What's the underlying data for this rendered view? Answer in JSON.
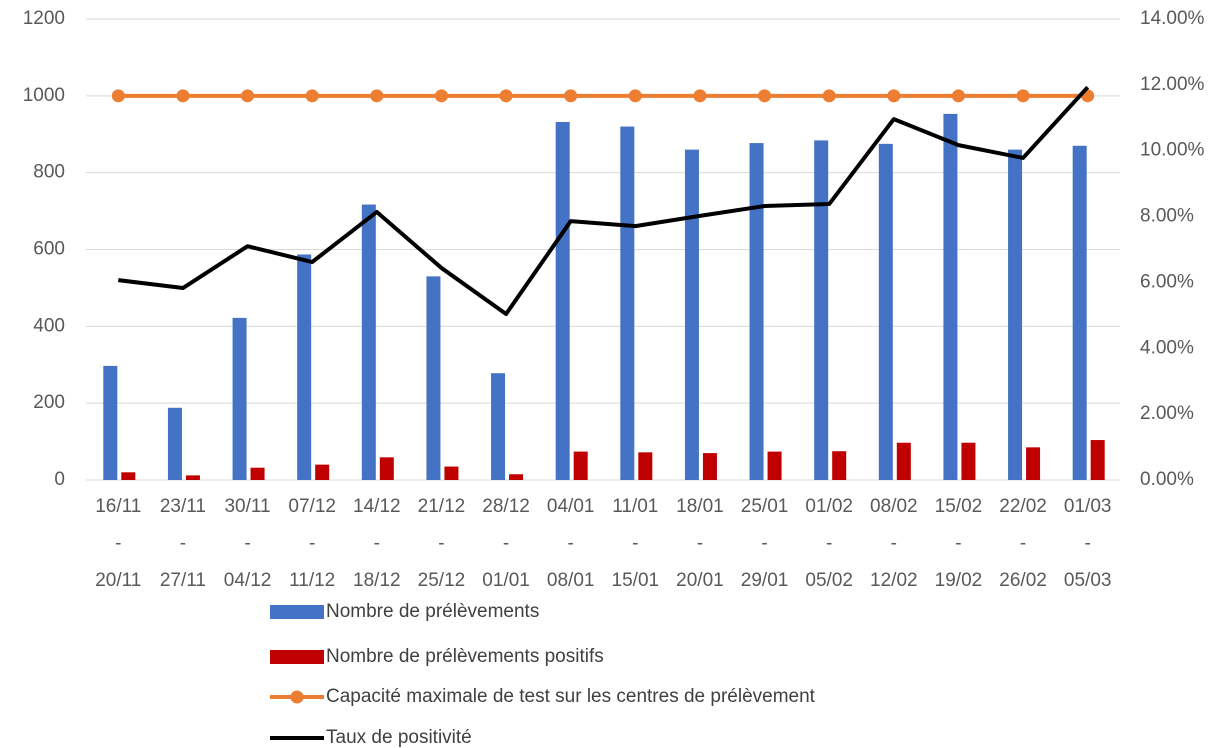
{
  "chart_data": {
    "type": "bar_line",
    "categories": [
      [
        "16/11",
        "-",
        "20/11"
      ],
      [
        "23/11",
        "-",
        "27/11"
      ],
      [
        "30/11",
        "-",
        "04/12"
      ],
      [
        "07/12",
        "-",
        "11/12"
      ],
      [
        "14/12",
        "-",
        "18/12"
      ],
      [
        "21/12",
        "-",
        "25/12"
      ],
      [
        "28/12",
        "-",
        "01/01"
      ],
      [
        "04/01",
        "-",
        "08/01"
      ],
      [
        "11/01",
        "-",
        "15/01"
      ],
      [
        "18/01",
        "-",
        "20/01"
      ],
      [
        "25/01",
        "-",
        "29/01"
      ],
      [
        "01/02",
        "-",
        "05/02"
      ],
      [
        "08/02",
        "-",
        "12/02"
      ],
      [
        "15/02",
        "-",
        "19/02"
      ],
      [
        "22/02",
        "-",
        "26/02"
      ],
      [
        "01/03",
        "-",
        "05/03"
      ]
    ],
    "series": [
      {
        "name": "Nombre de prélèvements",
        "kind": "bar",
        "color": "#4472c4",
        "values": [
          297,
          188,
          422,
          587,
          717,
          530,
          278,
          932,
          920,
          860,
          877,
          884,
          875,
          953,
          860,
          870
        ]
      },
      {
        "name": "Nombre de prélèvements positifs",
        "kind": "bar",
        "color": "#c00000",
        "values": [
          20,
          12,
          32,
          40,
          59,
          35,
          15,
          74,
          72,
          70,
          74,
          75,
          97,
          97,
          85,
          104
        ]
      },
      {
        "name": "Capacité maximale de test sur les centres de prélèvement",
        "kind": "line",
        "marker": true,
        "color": "#ed7d31",
        "values": [
          1000,
          1000,
          1000,
          1000,
          1000,
          1000,
          1000,
          1000,
          1000,
          1000,
          1000,
          1000,
          1000,
          1000,
          1000,
          1000
        ]
      },
      {
        "name": "Taux de positivité",
        "kind": "line",
        "marker": false,
        "axis": "y2",
        "color": "#000000",
        "values": [
          6.07,
          5.83,
          7.1,
          6.62,
          8.14,
          6.44,
          5.04,
          7.86,
          7.71,
          8.02,
          8.32,
          8.38,
          10.96,
          10.17,
          9.78,
          11.93
        ]
      }
    ],
    "ylim": [
      0,
      1200
    ],
    "yticks": [
      0,
      200,
      400,
      600,
      800,
      1000,
      1200
    ],
    "y2lim": [
      0,
      14
    ],
    "y2ticks": [
      {
        "value": 0,
        "label": "0.00%"
      },
      {
        "value": 2,
        "label": "2.00%"
      },
      {
        "value": 4,
        "label": "4.00%"
      },
      {
        "value": 6,
        "label": "6.00%"
      },
      {
        "value": 8,
        "label": "8.00%"
      },
      {
        "value": 10,
        "label": "10.00%"
      },
      {
        "value": 12,
        "label": "12.00%"
      },
      {
        "value": 14,
        "label": "14.00%"
      }
    ],
    "grid": true,
    "legend": "bottom"
  }
}
